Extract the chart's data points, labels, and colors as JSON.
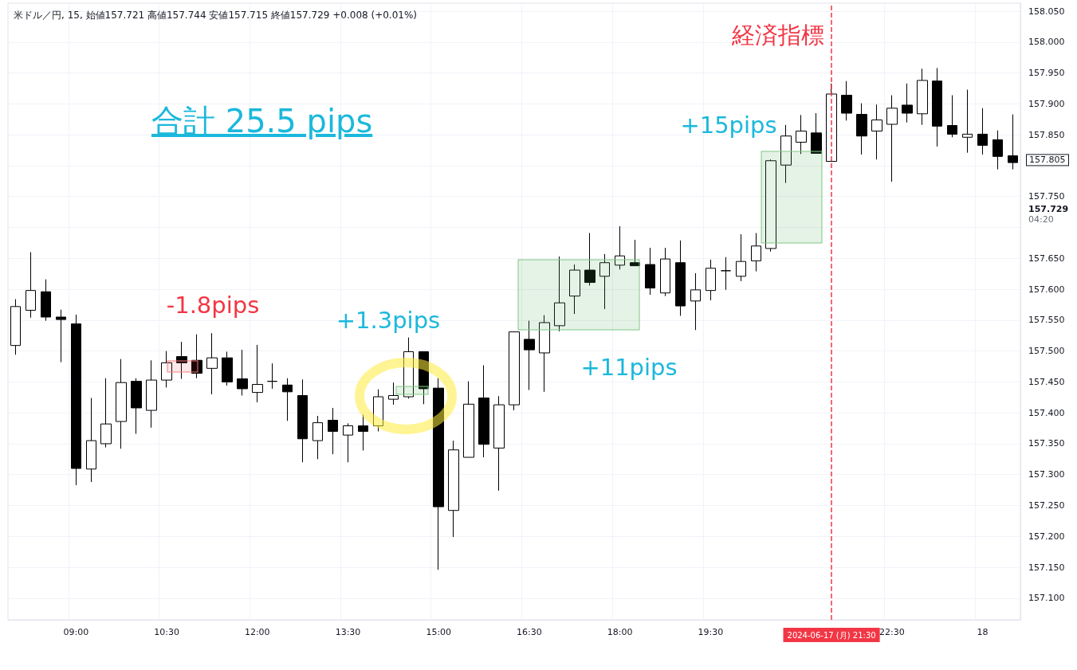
{
  "chart_data": {
    "type": "candlestick",
    "title": "米ドル／円, 15, 始値157.721 高値157.744 安値157.715 終値157.729 +0.008 (+0.01%)",
    "categories": [
      null,
      null,
      null,
      null,
      "09:00",
      null,
      null,
      null,
      null,
      null,
      "10:30",
      null,
      null,
      null,
      null,
      null,
      "12:00",
      null,
      null,
      null,
      null,
      null,
      "13:30",
      null,
      null,
      null,
      null,
      null,
      "15:00",
      null,
      null,
      null,
      null,
      null,
      "16:30",
      null,
      null,
      null,
      null,
      null,
      "18:00",
      null,
      null,
      null,
      null,
      null,
      "19:30",
      null,
      null,
      null,
      null,
      null,
      null,
      null,
      "2024-06-17 (月) 21:30",
      null,
      null,
      null,
      "22:30",
      null,
      null,
      null,
      null,
      null,
      "18",
      null,
      null
    ],
    "ohlc": [
      [
        157.509,
        157.584,
        157.494,
        157.572
      ],
      [
        157.566,
        157.66,
        157.554,
        157.598
      ],
      [
        157.596,
        157.616,
        157.549,
        157.555
      ],
      [
        157.555,
        157.567,
        157.482,
        157.551
      ],
      [
        157.544,
        157.559,
        157.283,
        157.31
      ],
      [
        157.309,
        157.424,
        157.288,
        157.355
      ],
      [
        157.35,
        157.456,
        157.344,
        157.382
      ],
      [
        157.386,
        157.487,
        157.342,
        157.449
      ],
      [
        157.451,
        157.456,
        157.366,
        157.408
      ],
      [
        157.404,
        157.485,
        157.376,
        157.453
      ],
      [
        157.453,
        157.5,
        157.441,
        157.481
      ],
      [
        157.491,
        157.515,
        157.455,
        157.481
      ],
      [
        157.485,
        157.527,
        157.456,
        157.464
      ],
      [
        157.472,
        157.529,
        157.43,
        157.489
      ],
      [
        157.489,
        157.499,
        157.444,
        157.45
      ],
      [
        157.455,
        157.502,
        157.428,
        157.439
      ],
      [
        157.433,
        157.51,
        157.417,
        157.446
      ],
      [
        157.451,
        157.48,
        157.439,
        157.451
      ],
      [
        157.445,
        157.456,
        157.387,
        157.434
      ],
      [
        157.428,
        157.454,
        157.32,
        157.358
      ],
      [
        157.355,
        157.395,
        157.325,
        157.384
      ],
      [
        157.388,
        157.408,
        157.333,
        157.37
      ],
      [
        157.364,
        157.383,
        157.32,
        157.379
      ],
      [
        157.379,
        157.397,
        157.339,
        157.37
      ],
      [
        157.379,
        157.438,
        157.37,
        157.426
      ],
      [
        157.422,
        157.449,
        157.413,
        157.428
      ],
      [
        157.426,
        157.522,
        157.423,
        157.499
      ],
      [
        157.499,
        157.499,
        157.414,
        157.439
      ],
      [
        157.44,
        157.456,
        157.146,
        157.248
      ],
      [
        157.242,
        157.355,
        157.199,
        157.34
      ],
      [
        157.328,
        157.451,
        157.328,
        157.414
      ],
      [
        157.424,
        157.477,
        157.328,
        157.349
      ],
      [
        157.343,
        157.427,
        157.274,
        157.413
      ],
      [
        157.413,
        157.531,
        157.404,
        157.531
      ],
      [
        157.519,
        157.549,
        157.437,
        157.502
      ],
      [
        157.497,
        157.558,
        157.434,
        157.546
      ],
      [
        157.541,
        157.653,
        157.532,
        157.578
      ],
      [
        157.589,
        157.64,
        157.56,
        157.631
      ],
      [
        157.631,
        157.691,
        157.606,
        157.611
      ],
      [
        157.621,
        157.657,
        157.568,
        157.643
      ],
      [
        157.639,
        157.702,
        157.632,
        157.654
      ],
      [
        157.643,
        157.68,
        157.638,
        157.638
      ],
      [
        157.64,
        157.667,
        157.591,
        157.602
      ],
      [
        157.594,
        157.667,
        157.589,
        157.649
      ],
      [
        157.643,
        157.679,
        157.557,
        157.573
      ],
      [
        157.581,
        157.626,
        157.534,
        157.599
      ],
      [
        157.598,
        157.648,
        157.582,
        157.634
      ],
      [
        157.63,
        157.652,
        157.599,
        157.63
      ],
      [
        157.621,
        157.689,
        157.613,
        157.645
      ],
      [
        157.646,
        157.691,
        157.629,
        157.67
      ],
      [
        157.666,
        157.81,
        157.661,
        157.808
      ],
      [
        157.801,
        157.866,
        157.772,
        157.848
      ],
      [
        157.838,
        157.882,
        157.819,
        157.856
      ],
      [
        157.853,
        157.885,
        157.82,
        157.82
      ],
      [
        157.807,
        157.933,
        157.807,
        157.916
      ],
      [
        157.914,
        157.937,
        157.873,
        157.885
      ],
      [
        157.883,
        157.901,
        157.818,
        157.848
      ],
      [
        157.856,
        157.899,
        157.81,
        157.874
      ],
      [
        157.867,
        157.914,
        157.774,
        157.893
      ],
      [
        157.898,
        157.933,
        157.87,
        157.885
      ],
      [
        157.884,
        157.957,
        157.866,
        157.938
      ],
      [
        157.937,
        157.958,
        157.831,
        157.864
      ],
      [
        157.865,
        157.914,
        157.846,
        157.851
      ],
      [
        157.846,
        157.923,
        157.821,
        157.851
      ],
      [
        157.851,
        157.893,
        157.818,
        157.833
      ],
      [
        157.842,
        157.857,
        157.794,
        157.815
      ],
      [
        157.816,
        157.883,
        157.794,
        157.805
      ]
    ],
    "ylim": [
      157.065,
      158.063
    ],
    "yticks": [
      {
        "value": 157.1,
        "label": "157.100"
      },
      {
        "value": 157.15,
        "label": "157.150"
      },
      {
        "value": 157.2,
        "label": "157.200"
      },
      {
        "value": 157.25,
        "label": "157.250"
      },
      {
        "value": 157.3,
        "label": "157.300"
      },
      {
        "value": 157.35,
        "label": "157.350"
      },
      {
        "value": 157.4,
        "label": "157.400"
      },
      {
        "value": 157.45,
        "label": "157.450"
      },
      {
        "value": 157.5,
        "label": "157.500"
      },
      {
        "value": 157.55,
        "label": "157.550"
      },
      {
        "value": 157.6,
        "label": "157.600"
      },
      {
        "value": 157.65,
        "label": "157.650"
      },
      {
        "value": 157.7,
        "label": null
      },
      {
        "value": 157.75,
        "label": "157.750"
      },
      {
        "value": 157.8,
        "label": null
      },
      {
        "value": 157.85,
        "label": "157.850"
      },
      {
        "value": 157.9,
        "label": "157.900"
      },
      {
        "value": 157.95,
        "label": "157.950"
      },
      {
        "value": 158.0,
        "label": "158.000"
      },
      {
        "value": 158.05,
        "label": "158.050"
      }
    ],
    "ref_lines": [
      {
        "axis": "x",
        "value": "2024-06-17 (月) 21:30",
        "color": "#f23645",
        "line_style": "dashed"
      }
    ],
    "annotations": [
      "合計 25.5 pips",
      "-1.8pips",
      "+1.3pips",
      "+11pips",
      "+15pips",
      "経済指標",
      "157.805",
      "157.729",
      "04:20"
    ],
    "grid": true
  }
}
